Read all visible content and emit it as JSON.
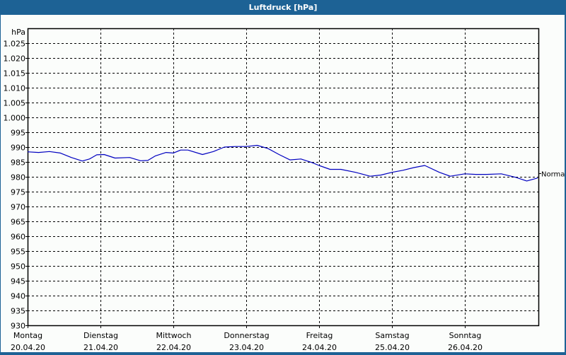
{
  "window": {
    "title": "Luftdruck [hPa]"
  },
  "colors": {
    "titlebar": "#1d6295",
    "background": "#fbfdfb",
    "series": "#0000c0",
    "grid": "#000000"
  },
  "chart_data": {
    "type": "line",
    "title": "Luftdruck [hPa]",
    "ylabel": "hPa",
    "xlabel": "",
    "ylim": [
      930,
      1030
    ],
    "y_ticks": [
      "1.025",
      "1.020",
      "1.015",
      "1.010",
      "1.005",
      "1.000",
      "995",
      "990",
      "985",
      "980",
      "975",
      "970",
      "965",
      "960",
      "955",
      "950",
      "945",
      "940",
      "935",
      "930"
    ],
    "x_ticks": [
      {
        "day": "Montag",
        "date": "20.04.20"
      },
      {
        "day": "Dienstag",
        "date": "21.04.20"
      },
      {
        "day": "Mittwoch",
        "date": "22.04.20"
      },
      {
        "day": "Donnerstag",
        "date": "23.04.20"
      },
      {
        "day": "Freitag",
        "date": "24.04.20"
      },
      {
        "day": "Samstag",
        "date": "25.04.20"
      },
      {
        "day": "Sonntag",
        "date": "26.04.20"
      }
    ],
    "grid": true,
    "annotations": [
      {
        "label": "Normal",
        "y": 980
      }
    ],
    "series": [
      {
        "name": "Luftdruck",
        "x_days": [
          0.0,
          0.15,
          0.3,
          0.45,
          0.6,
          0.75,
          0.85,
          0.95,
          1.05,
          1.2,
          1.4,
          1.55,
          1.65,
          1.75,
          1.9,
          2.0,
          2.1,
          2.2,
          2.4,
          2.55,
          2.7,
          2.85,
          3.0,
          3.15,
          3.3,
          3.45,
          3.6,
          3.75,
          3.9,
          4.0,
          4.15,
          4.3,
          4.5,
          4.7,
          4.85,
          5.0,
          5.15,
          5.3,
          5.45,
          5.65,
          5.8,
          6.0,
          6.15,
          6.3,
          6.5,
          6.7,
          6.85,
          7.0
        ],
        "values": [
          988.4,
          988.2,
          988.5,
          988.0,
          986.5,
          985.3,
          986.0,
          987.4,
          987.5,
          986.3,
          986.5,
          985.4,
          985.5,
          987.0,
          988.2,
          988.0,
          989.0,
          989.0,
          987.5,
          988.5,
          990.0,
          990.2,
          990.2,
          990.6,
          989.5,
          987.5,
          985.7,
          986.0,
          984.8,
          983.8,
          982.5,
          982.5,
          981.5,
          980.2,
          980.6,
          981.5,
          982.2,
          983.1,
          983.8,
          981.5,
          980.2,
          981.0,
          980.8,
          980.8,
          981.0,
          979.8,
          978.6,
          979.6
        ]
      }
    ]
  }
}
